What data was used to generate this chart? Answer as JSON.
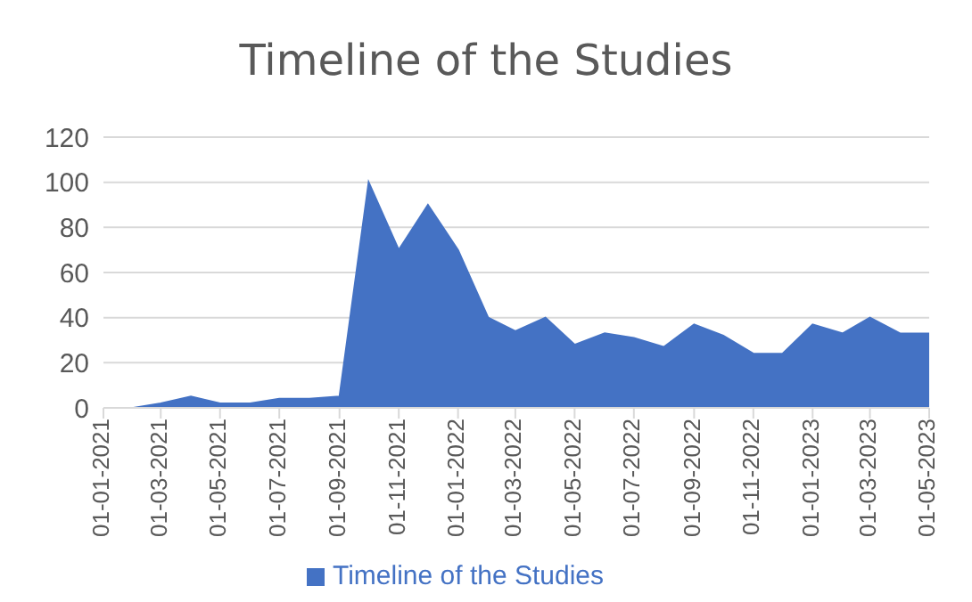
{
  "chart_data": {
    "type": "area",
    "title": "Timeline of the Studies",
    "x": [
      "2021-01-01",
      "2021-02-01",
      "2021-03-01",
      "2021-04-01",
      "2021-05-01",
      "2021-06-01",
      "2021-07-01",
      "2021-08-01",
      "2021-09-01",
      "2021-10-01",
      "2021-11-01",
      "2021-12-01",
      "2022-01-01",
      "2022-02-01",
      "2022-03-01",
      "2022-04-01",
      "2022-05-01",
      "2022-06-01",
      "2022-07-01",
      "2022-08-01",
      "2022-09-01",
      "2022-10-01",
      "2022-11-01",
      "2022-12-01",
      "2023-01-01",
      "2023-02-01",
      "2023-03-01",
      "2023-04-01",
      "2023-05-01"
    ],
    "series": [
      {
        "name": "Timeline of the Studies",
        "color": "#4472c4",
        "values": [
          0,
          0,
          2,
          5,
          2,
          2,
          4,
          4,
          5,
          100,
          70,
          90,
          70,
          40,
          34,
          40,
          28,
          33,
          31,
          27,
          37,
          32,
          24,
          24,
          37,
          33,
          40,
          33,
          33
        ]
      }
    ],
    "xlim": [
      "2021-01-01",
      "2023-05-01"
    ],
    "xticks": [
      {
        "value": "2021-01-01",
        "label": "01-01-2021"
      },
      {
        "value": "2021-03-01",
        "label": "01-03-2021"
      },
      {
        "value": "2021-05-01",
        "label": "01-05-2021"
      },
      {
        "value": "2021-07-01",
        "label": "01-07-2021"
      },
      {
        "value": "2021-09-01",
        "label": "01-09-2021"
      },
      {
        "value": "2021-11-01",
        "label": "01-11-2021"
      },
      {
        "value": "2022-01-01",
        "label": "01-01-2022"
      },
      {
        "value": "2022-03-01",
        "label": "01-03-2022"
      },
      {
        "value": "2022-05-01",
        "label": "01-05-2022"
      },
      {
        "value": "2022-07-01",
        "label": "01-07-2022"
      },
      {
        "value": "2022-09-01",
        "label": "01-09-2022"
      },
      {
        "value": "2022-11-01",
        "label": "01-11-2022"
      },
      {
        "value": "2023-01-01",
        "label": "01-01-2023"
      },
      {
        "value": "2023-03-01",
        "label": "01-03-2023"
      },
      {
        "value": "2023-05-01",
        "label": "01-05-2023"
      }
    ],
    "ylim": [
      0,
      120
    ],
    "yticks": [
      0,
      20,
      40,
      60,
      80,
      100,
      120
    ],
    "grid": "y",
    "legend": "bottom"
  }
}
